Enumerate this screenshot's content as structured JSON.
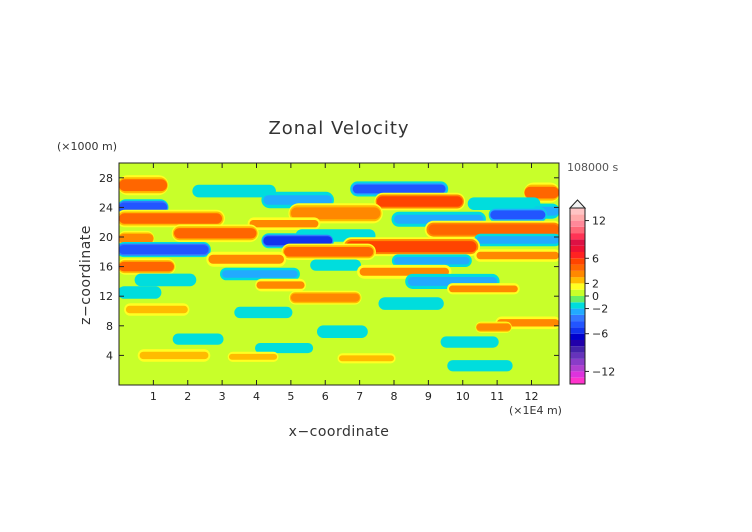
{
  "chart_data": {
    "type": "heatmap",
    "title": "Zonal Velocity",
    "xlabel": "x−coordinate",
    "ylabel": "z−coordinate",
    "x_unit": "(×1E4 m)",
    "y_unit": "(×1000 m)",
    "time_label": "108000 s",
    "xlim": [
      0,
      12.8
    ],
    "ylim": [
      0,
      30
    ],
    "x_ticks": [
      1,
      2,
      3,
      4,
      5,
      6,
      7,
      8,
      9,
      10,
      11,
      12
    ],
    "y_ticks": [
      4,
      8,
      12,
      16,
      20,
      24,
      28
    ],
    "colorbar": {
      "range": [
        -14,
        14
      ],
      "tick_values": [
        12,
        6,
        2,
        0,
        -2,
        -6,
        -12
      ],
      "tick_labels": [
        "12",
        "6",
        "2",
        "0",
        "−2",
        "−6",
        "−12"
      ],
      "levels": [
        {
          "from": -14,
          "to": -13,
          "color": "#ff33cc"
        },
        {
          "from": -13,
          "to": -12,
          "color": "#dd33dd"
        },
        {
          "from": -12,
          "to": -11,
          "color": "#b040d0"
        },
        {
          "from": -11,
          "to": -10,
          "color": "#8a3cc8"
        },
        {
          "from": -10,
          "to": -9,
          "color": "#6633bb"
        },
        {
          "from": -9,
          "to": -8,
          "color": "#4422aa"
        },
        {
          "from": -8,
          "to": -7,
          "color": "#2200aa"
        },
        {
          "from": -7,
          "to": -6,
          "color": "#0000cc"
        },
        {
          "from": -6,
          "to": -5,
          "color": "#1133ee"
        },
        {
          "from": -5,
          "to": -4,
          "color": "#2255ff"
        },
        {
          "from": -4,
          "to": -3,
          "color": "#3377ff"
        },
        {
          "from": -3,
          "to": -2,
          "color": "#22aaff"
        },
        {
          "from": -2,
          "to": -1,
          "color": "#00dddd"
        },
        {
          "from": -1,
          "to": 0,
          "color": "#66ee66"
        },
        {
          "from": 0,
          "to": 1,
          "color": "#c8ff2a"
        },
        {
          "from": 1,
          "to": 2,
          "color": "#ffff22"
        },
        {
          "from": 2,
          "to": 3,
          "color": "#ffbb00"
        },
        {
          "from": 3,
          "to": 4,
          "color": "#ff8800"
        },
        {
          "from": 4,
          "to": 5,
          "color": "#ff6600"
        },
        {
          "from": 5,
          "to": 6,
          "color": "#ff4400"
        },
        {
          "from": 6,
          "to": 7,
          "color": "#ff2222"
        },
        {
          "from": 7,
          "to": 8,
          "color": "#ee1133"
        },
        {
          "from": 8,
          "to": 9,
          "color": "#dd1144"
        },
        {
          "from": 9,
          "to": 10,
          "color": "#ff3355"
        },
        {
          "from": 10,
          "to": 11,
          "color": "#ff6677"
        },
        {
          "from": 11,
          "to": 12,
          "color": "#ff8899"
        },
        {
          "from": 12,
          "to": 13,
          "color": "#ffaaaa"
        },
        {
          "from": 13,
          "to": 14,
          "color": "#ffc4c4"
        }
      ]
    },
    "bands": [
      {
        "z": 27.0,
        "x1": 0.0,
        "x2": 1.4,
        "h": 1.6,
        "v": 4.2
      },
      {
        "z": 26.5,
        "x1": 6.8,
        "x2": 9.5,
        "h": 1.2,
        "v": -4.5
      },
      {
        "z": 26.2,
        "x1": 2.2,
        "x2": 4.5,
        "h": 1.0,
        "v": -1.5
      },
      {
        "z": 26.0,
        "x1": 11.8,
        "x2": 12.8,
        "h": 1.6,
        "v": 4.0
      },
      {
        "z": 25.0,
        "x1": 4.2,
        "x2": 6.2,
        "h": 1.3,
        "v": -2.5
      },
      {
        "z": 24.8,
        "x1": 7.5,
        "x2": 10.0,
        "h": 1.4,
        "v": 5.0
      },
      {
        "z": 24.5,
        "x1": 10.2,
        "x2": 12.2,
        "h": 1.0,
        "v": -2.0
      },
      {
        "z": 24.0,
        "x1": 0.0,
        "x2": 1.4,
        "h": 1.3,
        "v": -5.0
      },
      {
        "z": 23.5,
        "x1": 12.0,
        "x2": 12.8,
        "h": 1.2,
        "v": -3.0
      },
      {
        "z": 23.0,
        "x1": 10.8,
        "x2": 12.4,
        "h": 1.2,
        "v": -4.5
      },
      {
        "z": 23.2,
        "x1": 5.0,
        "x2": 7.6,
        "h": 1.6,
        "v": 3.8
      },
      {
        "z": 22.5,
        "x1": 0.0,
        "x2": 3.0,
        "h": 1.4,
        "v": 4.0
      },
      {
        "z": 22.4,
        "x1": 8.0,
        "x2": 10.6,
        "h": 1.2,
        "v": -2.2
      },
      {
        "z": 21.8,
        "x1": 3.8,
        "x2": 5.8,
        "h": 1.0,
        "v": 3.0
      },
      {
        "z": 21.0,
        "x1": 9.0,
        "x2": 12.8,
        "h": 1.4,
        "v": 4.6
      },
      {
        "z": 20.5,
        "x1": 1.6,
        "x2": 4.0,
        "h": 1.4,
        "v": 4.4
      },
      {
        "z": 20.2,
        "x1": 5.2,
        "x2": 7.4,
        "h": 1.0,
        "v": -1.8
      },
      {
        "z": 19.8,
        "x1": 0.0,
        "x2": 1.0,
        "h": 1.2,
        "v": 3.6
      },
      {
        "z": 19.5,
        "x1": 4.2,
        "x2": 6.2,
        "h": 1.2,
        "v": -5.2
      },
      {
        "z": 19.6,
        "x1": 10.4,
        "x2": 12.8,
        "h": 1.0,
        "v": -2.8
      },
      {
        "z": 18.7,
        "x1": 6.6,
        "x2": 10.4,
        "h": 1.5,
        "v": 5.3
      },
      {
        "z": 18.3,
        "x1": 0.0,
        "x2": 2.6,
        "h": 1.2,
        "v": -5.0
      },
      {
        "z": 18.0,
        "x1": 4.8,
        "x2": 7.4,
        "h": 1.3,
        "v": 4.4
      },
      {
        "z": 17.5,
        "x1": 10.4,
        "x2": 12.8,
        "h": 1.0,
        "v": 3.2
      },
      {
        "z": 17.0,
        "x1": 2.6,
        "x2": 4.8,
        "h": 1.2,
        "v": 3.2
      },
      {
        "z": 16.8,
        "x1": 8.0,
        "x2": 10.2,
        "h": 1.0,
        "v": -2.4
      },
      {
        "z": 16.2,
        "x1": 5.6,
        "x2": 7.0,
        "h": 0.9,
        "v": -2.0
      },
      {
        "z": 16.0,
        "x1": 0.0,
        "x2": 1.6,
        "h": 1.3,
        "v": 4.0
      },
      {
        "z": 15.3,
        "x1": 7.0,
        "x2": 9.6,
        "h": 1.1,
        "v": 3.2
      },
      {
        "z": 15.0,
        "x1": 3.0,
        "x2": 5.2,
        "h": 1.0,
        "v": -2.2
      },
      {
        "z": 14.2,
        "x1": 0.5,
        "x2": 2.2,
        "h": 1.0,
        "v": -1.6
      },
      {
        "z": 14.0,
        "x1": 8.4,
        "x2": 11.0,
        "h": 1.2,
        "v": -2.6
      },
      {
        "z": 13.5,
        "x1": 4.0,
        "x2": 5.4,
        "h": 1.0,
        "v": 3.0
      },
      {
        "z": 13.0,
        "x1": 9.6,
        "x2": 11.6,
        "h": 0.9,
        "v": 3.0
      },
      {
        "z": 12.5,
        "x1": 0.0,
        "x2": 1.2,
        "h": 1.0,
        "v": -1.8
      },
      {
        "z": 11.8,
        "x1": 5.0,
        "x2": 7.0,
        "h": 1.1,
        "v": 3.6
      },
      {
        "z": 11.0,
        "x1": 7.6,
        "x2": 9.4,
        "h": 1.0,
        "v": -1.6
      },
      {
        "z": 10.2,
        "x1": 0.2,
        "x2": 2.0,
        "h": 1.0,
        "v": 2.8
      },
      {
        "z": 9.8,
        "x1": 3.4,
        "x2": 5.0,
        "h": 0.9,
        "v": -1.5
      },
      {
        "z": 8.4,
        "x1": 11.0,
        "x2": 12.8,
        "h": 1.0,
        "v": 3.0
      },
      {
        "z": 7.8,
        "x1": 10.4,
        "x2": 11.4,
        "h": 0.9,
        "v": 3.5
      },
      {
        "z": 7.2,
        "x1": 5.8,
        "x2": 7.2,
        "h": 1.0,
        "v": -1.6
      },
      {
        "z": 6.2,
        "x1": 1.6,
        "x2": 3.0,
        "h": 0.9,
        "v": -1.6
      },
      {
        "z": 5.8,
        "x1": 9.4,
        "x2": 11.0,
        "h": 0.9,
        "v": -2.0
      },
      {
        "z": 5.0,
        "x1": 4.0,
        "x2": 5.6,
        "h": 0.8,
        "v": -1.4
      },
      {
        "z": 4.0,
        "x1": 0.6,
        "x2": 2.6,
        "h": 1.0,
        "v": 2.8
      },
      {
        "z": 3.8,
        "x1": 3.2,
        "x2": 4.6,
        "h": 0.8,
        "v": 2.6
      },
      {
        "z": 3.6,
        "x1": 6.4,
        "x2": 8.0,
        "h": 0.8,
        "v": 2.4
      },
      {
        "z": 2.6,
        "x1": 9.6,
        "x2": 11.4,
        "h": 0.9,
        "v": -1.4
      }
    ]
  }
}
